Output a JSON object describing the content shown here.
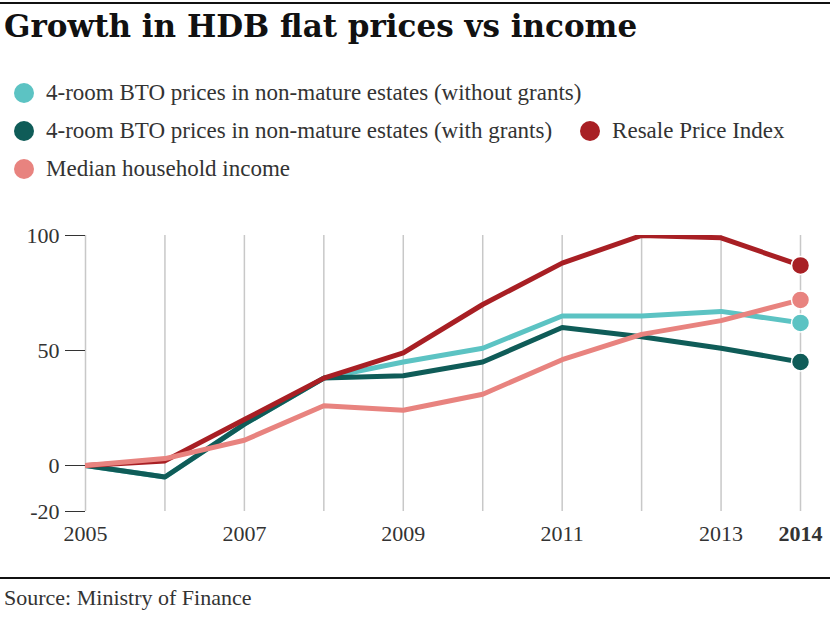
{
  "chart_data": {
    "type": "line",
    "title": "Growth in HDB flat prices vs income",
    "source": "Source: Ministry of Finance",
    "x": [
      2005,
      2006,
      2007,
      2008,
      2009,
      2010,
      2011,
      2012,
      2013,
      2014
    ],
    "series": [
      {
        "name": "4-room BTO prices in non-mature estates (without grants)",
        "color": "#5cc3c3",
        "values": [
          0,
          -5,
          18,
          38,
          45,
          51,
          65,
          65,
          67,
          62
        ]
      },
      {
        "name": "4-room BTO prices in non-mature estates (with grants)",
        "color": "#0f5c58",
        "values": [
          0,
          -5,
          18,
          38,
          39,
          45,
          60,
          56,
          51,
          45
        ]
      },
      {
        "name": "Resale Price Index",
        "color": "#a81f24",
        "values": [
          0,
          2,
          20,
          38,
          49,
          70,
          88,
          100,
          99,
          87
        ]
      },
      {
        "name": "Median household income",
        "color": "#e8837f",
        "values": [
          0,
          3,
          11,
          26,
          24,
          31,
          46,
          57,
          63,
          72
        ]
      }
    ],
    "xlim": [
      2005,
      2014
    ],
    "xticks": [
      2005,
      2007,
      2009,
      2011,
      2013,
      2014
    ],
    "ylim": [
      -20,
      100
    ],
    "yticks": [
      -20,
      0,
      50,
      100
    ],
    "grid": "x",
    "marker": "circle",
    "legend": "top"
  }
}
